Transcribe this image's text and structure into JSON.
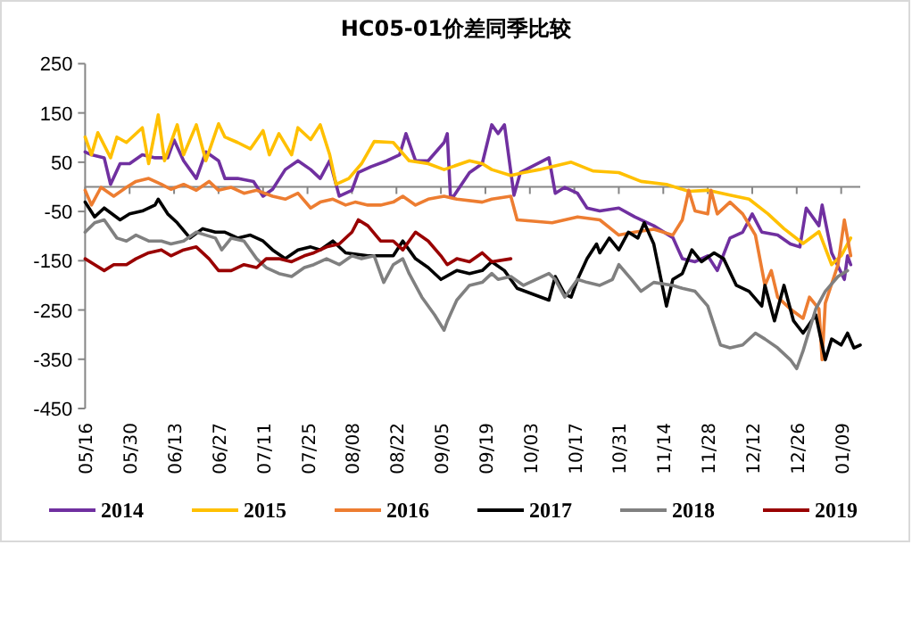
{
  "chart_data": {
    "type": "line",
    "title": "HC05-01价差同季比较",
    "xlim": [
      "2019-05-16",
      "2020-01-15"
    ],
    "xticks": [
      {
        "value": "2019-05-16",
        "label": "05/16"
      },
      {
        "value": "2019-05-30",
        "label": "05/30"
      },
      {
        "value": "2019-06-13",
        "label": "06/13"
      },
      {
        "value": "2019-06-27",
        "label": "06/27"
      },
      {
        "value": "2019-07-11",
        "label": "07/11"
      },
      {
        "value": "2019-07-25",
        "label": "07/25"
      },
      {
        "value": "2019-08-08",
        "label": "08/08"
      },
      {
        "value": "2019-08-22",
        "label": "08/22"
      },
      {
        "value": "2019-09-05",
        "label": "09/05"
      },
      {
        "value": "2019-09-19",
        "label": "09/19"
      },
      {
        "value": "2019-10-03",
        "label": "10/03"
      },
      {
        "value": "2019-10-17",
        "label": "10/17"
      },
      {
        "value": "2019-10-31",
        "label": "10/31"
      },
      {
        "value": "2019-11-14",
        "label": "11/14"
      },
      {
        "value": "2019-11-28",
        "label": "11/28"
      },
      {
        "value": "2019-12-12",
        "label": "12/12"
      },
      {
        "value": "2019-12-26",
        "label": "12/26"
      },
      {
        "value": "2020-01-09",
        "label": "01/09"
      }
    ],
    "ylim": [
      -450,
      250
    ],
    "yticks": [
      -450,
      -350,
      -250,
      -150,
      -50,
      50,
      150,
      250
    ],
    "grid": false,
    "legend": "bottom",
    "marker": "none",
    "line_style": "solid",
    "series": [
      {
        "name": "2014",
        "color": "#7030a0",
        "x": [
          "2019-05-16",
          "2019-05-18",
          "2019-05-22",
          "2019-05-24",
          "2019-05-27",
          "2019-05-30",
          "2019-06-03",
          "2019-06-07",
          "2019-06-11",
          "2019-06-13",
          "2019-06-16",
          "2019-06-20",
          "2019-06-23",
          "2019-06-27",
          "2019-06-29",
          "2019-07-03",
          "2019-07-08",
          "2019-07-11",
          "2019-07-14",
          "2019-07-18",
          "2019-07-22",
          "2019-07-26",
          "2019-07-29",
          "2019-08-01",
          "2019-08-04",
          "2019-08-08",
          "2019-08-10",
          "2019-08-14",
          "2019-08-19",
          "2019-08-23",
          "2019-08-25",
          "2019-08-28",
          "2019-09-01",
          "2019-09-06",
          "2019-09-07",
          "2019-09-08",
          "2019-09-09",
          "2019-09-14",
          "2019-09-18",
          "2019-09-21",
          "2019-09-23",
          "2019-09-25",
          "2019-09-28",
          "2019-09-30",
          "2019-10-09",
          "2019-10-11",
          "2019-10-14",
          "2019-10-18",
          "2019-10-21",
          "2019-10-25",
          "2019-10-31",
          "2019-11-05",
          "2019-11-11",
          "2019-11-17",
          "2019-11-20",
          "2019-11-24",
          "2019-11-28",
          "2019-12-01",
          "2019-12-05",
          "2019-12-09",
          "2019-12-12",
          "2019-12-15",
          "2019-12-20",
          "2019-12-24",
          "2019-12-27",
          "2019-12-29",
          "2020-01-02",
          "2020-01-03",
          "2020-01-06",
          "2020-01-10",
          "2020-01-11",
          "2020-01-12"
        ],
        "values": [
          71,
          65,
          59,
          5,
          47,
          47,
          65,
          59,
          59,
          95,
          53,
          17,
          71,
          53,
          17,
          17,
          11,
          -19,
          -5,
          35,
          53,
          35,
          17,
          53,
          -19,
          -7,
          29,
          41,
          53,
          65,
          108,
          53,
          53,
          90,
          108,
          -19,
          -19,
          29,
          47,
          126,
          108,
          126,
          -17,
          29,
          59,
          -13,
          -1,
          -13,
          -43,
          -49,
          -43,
          -61,
          -79,
          -103,
          -146,
          -152,
          -140,
          -170,
          -104,
          -92,
          -55,
          -92,
          -98,
          -116,
          -122,
          -43,
          -79,
          -37,
          -134,
          -188,
          -140,
          -158
        ]
      },
      {
        "name": "2015",
        "color": "#ffc000",
        "x": [
          "2019-05-16",
          "2019-05-18",
          "2019-05-20",
          "2019-05-24",
          "2019-05-26",
          "2019-05-29",
          "2019-06-03",
          "2019-06-05",
          "2019-06-08",
          "2019-06-10",
          "2019-06-14",
          "2019-06-16",
          "2019-06-20",
          "2019-06-23",
          "2019-06-27",
          "2019-06-29",
          "2019-07-03",
          "2019-07-07",
          "2019-07-11",
          "2019-07-13",
          "2019-07-16",
          "2019-07-20",
          "2019-07-22",
          "2019-07-26",
          "2019-07-29",
          "2019-08-01",
          "2019-08-03",
          "2019-08-07",
          "2019-08-11",
          "2019-08-15",
          "2019-08-21",
          "2019-08-26",
          "2019-09-01",
          "2019-09-06",
          "2019-09-14",
          "2019-09-18",
          "2019-09-21",
          "2019-09-27",
          "2019-10-01",
          "2019-10-06",
          "2019-10-16",
          "2019-10-23",
          "2019-10-31",
          "2019-11-07",
          "2019-11-15",
          "2019-11-22",
          "2019-11-28",
          "2019-12-05",
          "2019-12-11",
          "2019-12-17",
          "2019-12-22",
          "2019-12-28",
          "2020-01-02",
          "2020-01-06",
          "2020-01-09",
          "2020-01-12"
        ],
        "values": [
          101,
          65,
          110,
          59,
          101,
          90,
          120,
          47,
          146,
          53,
          126,
          65,
          126,
          53,
          128,
          101,
          90,
          77,
          114,
          65,
          108,
          65,
          120,
          96,
          126,
          65,
          5,
          17,
          47,
          92,
          90,
          53,
          47,
          35,
          53,
          47,
          35,
          23,
          29,
          35,
          50,
          32,
          29,
          11,
          5,
          -9,
          -7,
          -17,
          -25,
          -55,
          -85,
          -115,
          -91,
          -158,
          -140,
          -104
        ]
      },
      {
        "name": "2016",
        "color": "#ed7d31",
        "x": [
          "2019-05-16",
          "2019-05-18",
          "2019-05-21",
          "2019-05-25",
          "2019-05-29",
          "2019-06-01",
          "2019-06-05",
          "2019-06-09",
          "2019-06-12",
          "2019-06-16",
          "2019-06-20",
          "2019-06-24",
          "2019-06-27",
          "2019-07-01",
          "2019-07-05",
          "2019-07-09",
          "2019-07-14",
          "2019-07-18",
          "2019-07-22",
          "2019-07-26",
          "2019-07-29",
          "2019-08-02",
          "2019-08-06",
          "2019-08-09",
          "2019-08-13",
          "2019-08-17",
          "2019-08-21",
          "2019-08-24",
          "2019-08-28",
          "2019-09-01",
          "2019-09-06",
          "2019-09-10",
          "2019-09-18",
          "2019-09-21",
          "2019-09-27",
          "2019-09-29",
          "2019-10-10",
          "2019-10-18",
          "2019-10-25",
          "2019-10-31",
          "2019-11-05",
          "2019-11-11",
          "2019-11-17",
          "2019-11-20",
          "2019-11-22",
          "2019-11-24",
          "2019-11-28",
          "2019-11-29",
          "2019-12-01",
          "2019-12-05",
          "2019-12-09",
          "2019-12-13",
          "2019-12-16",
          "2019-12-18",
          "2019-12-20",
          "2019-12-24",
          "2019-12-28",
          "2019-12-30",
          "2020-01-02",
          "2020-01-03",
          "2020-01-04",
          "2020-01-08",
          "2020-01-10",
          "2020-01-12"
        ],
        "values": [
          -7,
          -37,
          -1,
          -19,
          -1,
          11,
          17,
          5,
          -5,
          5,
          -7,
          11,
          -7,
          -1,
          -13,
          -7,
          -19,
          -25,
          -13,
          -43,
          -31,
          -25,
          -37,
          -31,
          -37,
          -37,
          -31,
          -19,
          -37,
          -25,
          -19,
          -25,
          -31,
          -25,
          -19,
          -67,
          -73,
          -61,
          -67,
          -98,
          -92,
          -86,
          -98,
          -67,
          -7,
          -49,
          -55,
          -7,
          -55,
          -31,
          -55,
          -98,
          -200,
          -170,
          -224,
          -248,
          -267,
          -224,
          -248,
          -351,
          -236,
          -158,
          -67,
          -140
        ]
      },
      {
        "name": "2017",
        "color": "#000000",
        "x": [
          "2019-05-16",
          "2019-05-19",
          "2019-05-22",
          "2019-05-27",
          "2019-05-30",
          "2019-06-03",
          "2019-06-07",
          "2019-06-08",
          "2019-06-11",
          "2019-06-14",
          "2019-06-18",
          "2019-06-22",
          "2019-06-26",
          "2019-06-29",
          "2019-07-03",
          "2019-07-07",
          "2019-07-11",
          "2019-07-14",
          "2019-07-18",
          "2019-07-22",
          "2019-07-26",
          "2019-07-29",
          "2019-08-02",
          "2019-08-06",
          "2019-08-13",
          "2019-08-21",
          "2019-08-24",
          "2019-08-28",
          "2019-09-01",
          "2019-09-05",
          "2019-09-10",
          "2019-09-14",
          "2019-09-18",
          "2019-09-21",
          "2019-09-25",
          "2019-09-29",
          "2019-10-09",
          "2019-10-11",
          "2019-10-14",
          "2019-10-16",
          "2019-10-18",
          "2019-10-21",
          "2019-10-24",
          "2019-10-25",
          "2019-10-28",
          "2019-10-31",
          "2019-11-03",
          "2019-11-06",
          "2019-11-08",
          "2019-11-11",
          "2019-11-15",
          "2019-11-17",
          "2019-11-20",
          "2019-11-23",
          "2019-11-26",
          "2019-11-30",
          "2019-12-03",
          "2019-12-07",
          "2019-12-11",
          "2019-12-15",
          "2019-12-16",
          "2019-12-19",
          "2019-12-22",
          "2019-12-25",
          "2019-12-28",
          "2020-01-01",
          "2020-01-04",
          "2020-01-06",
          "2020-01-09",
          "2020-01-11",
          "2020-01-13",
          "2020-01-15"
        ],
        "values": [
          -31,
          -61,
          -43,
          -67,
          -55,
          -49,
          -37,
          -25,
          -55,
          -73,
          -104,
          -85,
          -92,
          -92,
          -104,
          -98,
          -110,
          -128,
          -146,
          -128,
          -122,
          -128,
          -110,
          -134,
          -140,
          -140,
          -110,
          -146,
          -164,
          -188,
          -170,
          -176,
          -170,
          -152,
          -170,
          -206,
          -230,
          -182,
          -218,
          -224,
          -188,
          -146,
          -116,
          -134,
          -104,
          -128,
          -92,
          -104,
          -73,
          -116,
          -242,
          -188,
          -176,
          -128,
          -152,
          -134,
          -146,
          -200,
          -212,
          -242,
          -200,
          -272,
          -200,
          -272,
          -297,
          -260,
          -351,
          -309,
          -321,
          -297,
          -327,
          -321
        ]
      },
      {
        "name": "2018",
        "color": "#808080",
        "x": [
          "2019-05-16",
          "2019-05-19",
          "2019-05-22",
          "2019-05-26",
          "2019-05-29",
          "2019-06-01",
          "2019-06-05",
          "2019-06-09",
          "2019-06-12",
          "2019-06-16",
          "2019-06-20",
          "2019-06-23",
          "2019-06-26",
          "2019-06-28",
          "2019-07-01",
          "2019-07-05",
          "2019-07-09",
          "2019-07-12",
          "2019-07-16",
          "2019-07-20",
          "2019-07-24",
          "2019-07-27",
          "2019-07-31",
          "2019-08-04",
          "2019-08-08",
          "2019-08-11",
          "2019-08-15",
          "2019-08-18",
          "2019-08-21",
          "2019-08-24",
          "2019-08-26",
          "2019-08-30",
          "2019-09-03",
          "2019-09-06",
          "2019-09-07",
          "2019-09-10",
          "2019-09-14",
          "2019-09-18",
          "2019-09-21",
          "2019-09-23",
          "2019-09-27",
          "2019-10-01",
          "2019-10-09",
          "2019-10-11",
          "2019-10-14",
          "2019-10-18",
          "2019-10-21",
          "2019-10-25",
          "2019-10-29",
          "2019-10-31",
          "2019-11-04",
          "2019-11-07",
          "2019-11-11",
          "2019-11-17",
          "2019-11-20",
          "2019-11-24",
          "2019-11-28",
          "2019-12-02",
          "2019-12-05",
          "2019-12-09",
          "2019-12-13",
          "2019-12-16",
          "2019-12-20",
          "2019-12-24",
          "2019-12-26",
          "2019-12-28",
          "2020-01-01",
          "2020-01-04",
          "2020-01-08",
          "2020-01-11"
        ],
        "values": [
          -92,
          -73,
          -67,
          -104,
          -110,
          -98,
          -110,
          -110,
          -116,
          -110,
          -92,
          -98,
          -104,
          -128,
          -104,
          -110,
          -146,
          -164,
          -176,
          -182,
          -164,
          -158,
          -146,
          -158,
          -140,
          -146,
          -140,
          -194,
          -158,
          -146,
          -176,
          -224,
          -260,
          -291,
          -273,
          -230,
          -200,
          -194,
          -176,
          -188,
          -182,
          -200,
          -176,
          -188,
          -224,
          -188,
          -194,
          -200,
          -188,
          -158,
          -188,
          -212,
          -194,
          -200,
          -206,
          -212,
          -242,
          -321,
          -327,
          -321,
          -297,
          -309,
          -327,
          -351,
          -369,
          -333,
          -248,
          -212,
          -182,
          -170
        ]
      },
      {
        "name": "2019",
        "color": "#990000",
        "x": [
          "2019-05-16",
          "2019-05-19",
          "2019-05-22",
          "2019-05-25",
          "2019-05-29",
          "2019-06-01",
          "2019-06-05",
          "2019-06-09",
          "2019-06-12",
          "2019-06-16",
          "2019-06-20",
          "2019-06-24",
          "2019-06-27",
          "2019-07-01",
          "2019-07-05",
          "2019-07-09",
          "2019-07-12",
          "2019-07-16",
          "2019-07-20",
          "2019-07-24",
          "2019-07-27",
          "2019-07-31",
          "2019-08-04",
          "2019-08-08",
          "2019-08-10",
          "2019-08-13",
          "2019-08-17",
          "2019-08-21",
          "2019-08-24",
          "2019-08-28",
          "2019-09-01",
          "2019-09-05",
          "2019-09-07",
          "2019-09-10",
          "2019-09-14",
          "2019-09-18",
          "2019-09-21",
          "2019-09-27"
        ],
        "values": [
          -146,
          -158,
          -170,
          -158,
          -158,
          -146,
          -134,
          -128,
          -140,
          -128,
          -122,
          -146,
          -170,
          -170,
          -158,
          -164,
          -146,
          -146,
          -152,
          -140,
          -134,
          -122,
          -116,
          -92,
          -67,
          -79,
          -110,
          -110,
          -128,
          -92,
          -110,
          -140,
          -158,
          -146,
          -152,
          -134,
          -152,
          -146
        ]
      }
    ]
  }
}
